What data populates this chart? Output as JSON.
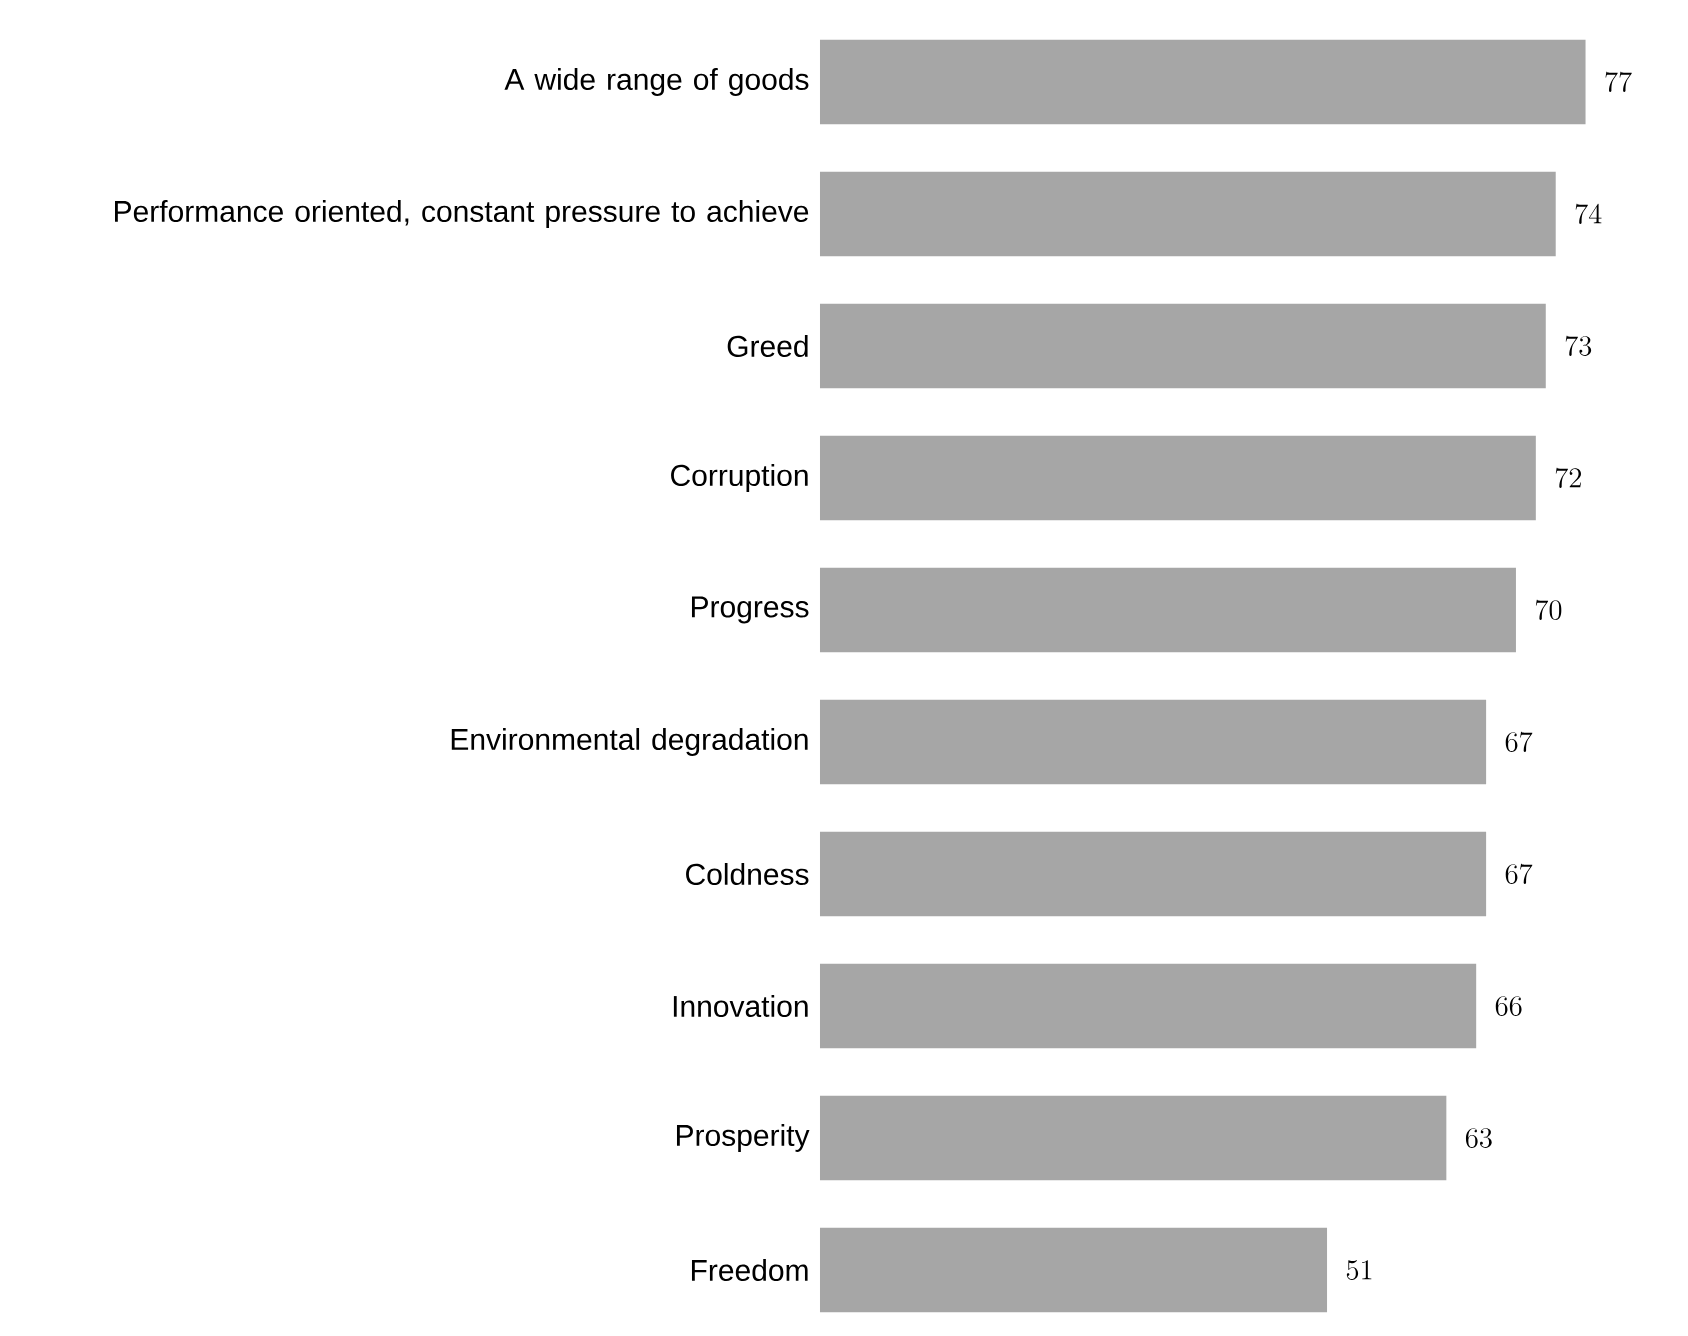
{
  "chart_data": {
    "type": "bar",
    "orientation": "horizontal",
    "categories": [
      "A wide range of goods",
      "Performance oriented, constant pressure to achieve",
      "Greed",
      "Corruption",
      "Progress",
      "Environmental degradation",
      "Coldness",
      "Innovation",
      "Prosperity",
      "Freedom"
    ],
    "values": [
      77,
      74,
      73,
      72,
      70,
      67,
      67,
      66,
      63,
      51
    ],
    "color": "#a6a6a6",
    "data_labels": true
  }
}
